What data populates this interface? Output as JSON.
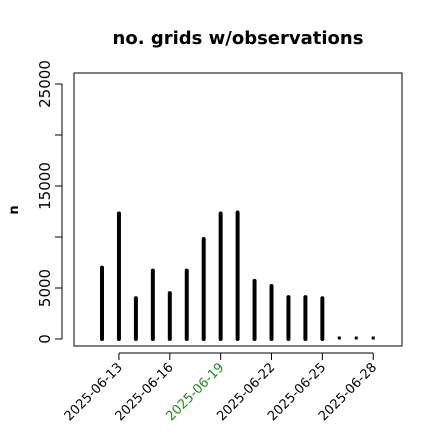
{
  "chart_data": {
    "type": "bar",
    "title": "no. grids w/observations",
    "ylabel": "n",
    "xlabel": "",
    "ylim": [
      0,
      25000
    ],
    "yticks": [
      0,
      5000,
      10000,
      15000,
      20000,
      25000
    ],
    "ytick_labels": [
      "0",
      "5000",
      "15000",
      "25000"
    ],
    "ytick_label_values": [
      0,
      5000,
      15000,
      25000
    ],
    "x": [
      "2025-06-12",
      "2025-06-13",
      "2025-06-14",
      "2025-06-15",
      "2025-06-16",
      "2025-06-17",
      "2025-06-18",
      "2025-06-19",
      "2025-06-20",
      "2025-06-21",
      "2025-06-22",
      "2025-06-23",
      "2025-06-24",
      "2025-06-25",
      "2025-06-26",
      "2025-06-27",
      "2025-06-28"
    ],
    "values": [
      7000,
      12300,
      4000,
      6700,
      4500,
      6700,
      9800,
      12300,
      12400,
      5700,
      5200,
      4100,
      4100,
      4000,
      100,
      100,
      100
    ],
    "xtick_labels": [
      "2025-06-13",
      "2025-06-16",
      "2025-06-19",
      "2025-06-22",
      "2025-06-25",
      "2025-06-28"
    ],
    "highlight_tick": "2025-06-19",
    "colors": {
      "bars": "#000000",
      "tick_text": "#000000",
      "highlight": "#228B22"
    },
    "grid": false,
    "legend": "none"
  }
}
